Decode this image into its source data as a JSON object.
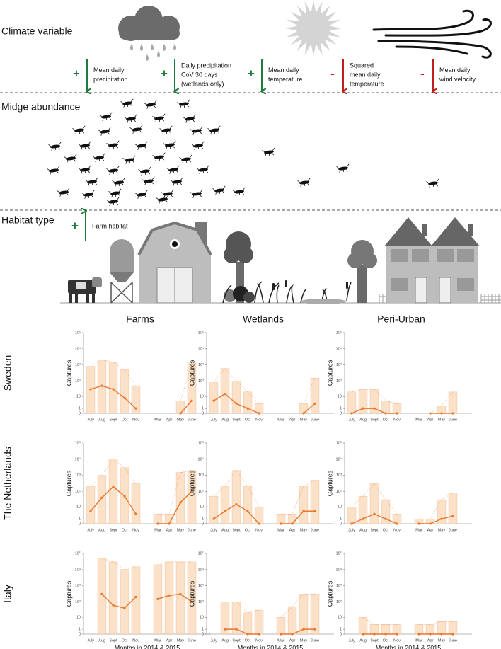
{
  "header": {
    "climate_title": "Climate variable",
    "effects": [
      {
        "sign": "+",
        "lines": [
          "Mean daily",
          "precipitation"
        ]
      },
      {
        "sign": "+",
        "lines": [
          "Daily precipitation",
          "CoV 30 days",
          "(wetlands only)"
        ]
      },
      {
        "sign": "+",
        "lines": [
          "Mean daily",
          "temperature"
        ]
      },
      {
        "sign": "-",
        "lines": [
          "Squared",
          "mean daily",
          "temperature"
        ]
      },
      {
        "sign": "-",
        "lines": [
          "Mean daily",
          "wind velocity"
        ]
      }
    ],
    "abundance_title": "Midge abundance",
    "habitat_title": "Habitat type",
    "habitat_effect": {
      "sign": "+",
      "lines": [
        "Farm habitat"
      ]
    }
  },
  "panels": {
    "columns": [
      "Farms",
      "Wetlands",
      "Peri-Urban"
    ],
    "rows": [
      "Sweden",
      "The Netherlands",
      "Italy"
    ]
  },
  "chart_data": [
    {
      "type": "line",
      "ylabel": "Captures",
      "yscale": "log1p",
      "color": "#e8762b",
      "band_color": "#fbe1c8",
      "categories": [
        "July",
        "Aug",
        "Sept",
        "Oct",
        "Nov",
        "Mar",
        "Apr",
        "May",
        "June"
      ],
      "values": [
        30,
        50,
        30,
        8,
        1,
        null,
        null,
        0,
        5
      ],
      "upper": [
        800,
        2000,
        1500,
        500,
        50,
        null,
        null,
        5,
        1500
      ],
      "ylim": [
        0,
        100000
      ],
      "yticks": [
        0,
        1,
        10,
        {
          "value": 100,
          "label": "10²"
        },
        {
          "value": 1000,
          "label": "10³"
        },
        {
          "value": 10000,
          "label": "10⁴"
        },
        {
          "value": 100000,
          "label": "10⁵"
        }
      ]
    },
    {
      "type": "line",
      "ylabel": "Captures",
      "yscale": "log1p",
      "color": "#e8762b",
      "band_color": "#fbe1c8",
      "categories": [
        "July",
        "Aug",
        "Sept",
        "Oct",
        "Nov",
        "Mar",
        "Apr",
        "May",
        "June"
      ],
      "values": [
        5,
        15,
        3,
        1,
        0,
        null,
        null,
        0,
        3
      ],
      "upper": [
        80,
        600,
        100,
        20,
        3,
        null,
        null,
        3,
        150
      ],
      "ylim": [
        0,
        100000
      ],
      "yticks": [
        0,
        1,
        10,
        {
          "value": 100,
          "label": "10²"
        },
        {
          "value": 1000,
          "label": "10³"
        },
        {
          "value": 10000,
          "label": "10⁴"
        },
        {
          "value": 100000,
          "label": "10⁵"
        }
      ]
    },
    {
      "type": "line",
      "ylabel": "Captures",
      "yscale": "log1p",
      "color": "#e8762b",
      "band_color": "#fbe1c8",
      "categories": [
        "July",
        "Aug",
        "Sept",
        "Oct",
        "Nov",
        "Mar",
        "Apr",
        "May",
        "June"
      ],
      "values": [
        0,
        1,
        1,
        0,
        0,
        null,
        0,
        0,
        0
      ],
      "upper": [
        20,
        30,
        30,
        5,
        3,
        null,
        0,
        2,
        20
      ],
      "ylim": [
        0,
        100000
      ],
      "yticks": [
        0,
        1,
        10,
        {
          "value": 100,
          "label": "10²"
        },
        {
          "value": 1000,
          "label": "10³"
        },
        {
          "value": 10000,
          "label": "10⁴"
        },
        {
          "value": 100000,
          "label": "10⁵"
        }
      ]
    },
    {
      "type": "line",
      "ylabel": "Captures",
      "yscale": "log1p",
      "color": "#e8762b",
      "band_color": "#fbe1c8",
      "categories": [
        "July",
        "Aug",
        "Sept",
        "Oct",
        "Nov",
        "Mar",
        "Apr",
        "May",
        "June"
      ],
      "values": [
        5,
        40,
        200,
        50,
        3,
        0,
        0,
        20,
        100
      ],
      "upper": [
        200,
        1000,
        10000,
        3000,
        300,
        3,
        3,
        1500,
        2000
      ],
      "ylim": [
        0,
        100000
      ],
      "yticks": [
        0,
        1,
        10,
        {
          "value": 100,
          "label": "10²"
        },
        {
          "value": 1000,
          "label": "10³"
        },
        {
          "value": 10000,
          "label": "10⁴"
        },
        {
          "value": 100000,
          "label": "10⁵"
        }
      ]
    },
    {
      "type": "line",
      "ylabel": "Captures",
      "yscale": "log1p",
      "color": "#e8762b",
      "band_color": "#fbe1c8",
      "categories": [
        "July",
        "Aug",
        "Sept",
        "Oct",
        "Nov",
        "Mar",
        "Apr",
        "May",
        "June"
      ],
      "values": [
        1,
        5,
        15,
        5,
        0,
        0,
        0,
        5,
        5
      ],
      "upper": [
        50,
        200,
        2000,
        200,
        10,
        3,
        3,
        200,
        500
      ],
      "ylim": [
        0,
        100000
      ],
      "yticks": [
        0,
        1,
        10,
        {
          "value": 100,
          "label": "10²"
        },
        {
          "value": 1000,
          "label": "10³"
        },
        {
          "value": 10000,
          "label": "10⁴"
        },
        {
          "value": 100000,
          "label": "10⁵"
        }
      ]
    },
    {
      "type": "line",
      "ylabel": "Captures",
      "yscale": "log1p",
      "color": "#e8762b",
      "band_color": "#fbe1c8",
      "categories": [
        "July",
        "Aug",
        "Sept",
        "Oct",
        "Nov",
        "Mar",
        "Apr",
        "May",
        "June"
      ],
      "values": [
        0,
        1,
        3,
        1,
        0,
        0,
        0,
        1,
        2
      ],
      "upper": [
        10,
        50,
        300,
        30,
        3,
        1,
        1,
        30,
        80
      ],
      "ylim": [
        0,
        100000
      ],
      "yticks": [
        0,
        1,
        10,
        {
          "value": 100,
          "label": "10²"
        },
        {
          "value": 1000,
          "label": "10³"
        },
        {
          "value": 10000,
          "label": "10⁴"
        },
        {
          "value": 100000,
          "label": "10⁵"
        }
      ]
    },
    {
      "type": "line",
      "ylabel": "Captures",
      "xlabel": "Months in 2014 & 2015",
      "yscale": "log1p",
      "color": "#e8762b",
      "band_color": "#fbe1c8",
      "categories": [
        "July",
        "Aug",
        "Sept",
        "Oct",
        "Nov",
        "Mar",
        "Apr",
        "May",
        "June"
      ],
      "values": [
        null,
        300,
        60,
        40,
        200,
        150,
        250,
        300,
        100
      ],
      "upper": [
        null,
        50000,
        30000,
        10000,
        15000,
        20000,
        30000,
        30000,
        30000
      ],
      "ylim": [
        0,
        100000
      ],
      "yticks": [
        0,
        1,
        10,
        {
          "value": 100,
          "label": "10²"
        },
        {
          "value": 1000,
          "label": "10³"
        },
        {
          "value": 10000,
          "label": "10⁴"
        },
        {
          "value": 100000,
          "label": "10⁵"
        }
      ]
    },
    {
      "type": "line",
      "ylabel": "Captures",
      "xlabel": "Months in 2014 & 2015",
      "yscale": "log1p",
      "color": "#e8762b",
      "band_color": "#fbe1c8",
      "categories": [
        "July",
        "Aug",
        "Sept",
        "Oct",
        "Nov",
        "Mar",
        "Apr",
        "May",
        "June"
      ],
      "values": [
        null,
        1,
        1,
        0,
        0,
        0,
        0,
        1,
        1
      ],
      "upper": [
        null,
        100,
        100,
        20,
        30,
        10,
        50,
        300,
        300
      ],
      "ylim": [
        0,
        100000
      ],
      "yticks": [
        0,
        1,
        10,
        {
          "value": 100,
          "label": "10²"
        },
        {
          "value": 1000,
          "label": "10³"
        },
        {
          "value": 10000,
          "label": "10⁴"
        },
        {
          "value": 100000,
          "label": "10⁵"
        }
      ]
    },
    {
      "type": "line",
      "ylabel": "Captures",
      "xlabel": "Months in 2014 & 2015",
      "yscale": "log1p",
      "color": "#e8762b",
      "band_color": "#fbe1c8",
      "categories": [
        "July",
        "Aug",
        "Sept",
        "Oct",
        "Nov",
        "Mar",
        "Apr",
        "May",
        "June"
      ],
      "values": [
        null,
        0,
        0,
        0,
        0,
        0,
        0,
        0,
        0
      ],
      "upper": [
        null,
        10,
        3,
        3,
        3,
        3,
        3,
        5,
        5
      ],
      "ylim": [
        0,
        100000
      ],
      "yticks": [
        0,
        1,
        10,
        {
          "value": 100,
          "label": "10²"
        },
        {
          "value": 1000,
          "label": "10³"
        },
        {
          "value": 10000,
          "label": "10⁴"
        },
        {
          "value": 100000,
          "label": "10⁵"
        }
      ]
    }
  ]
}
